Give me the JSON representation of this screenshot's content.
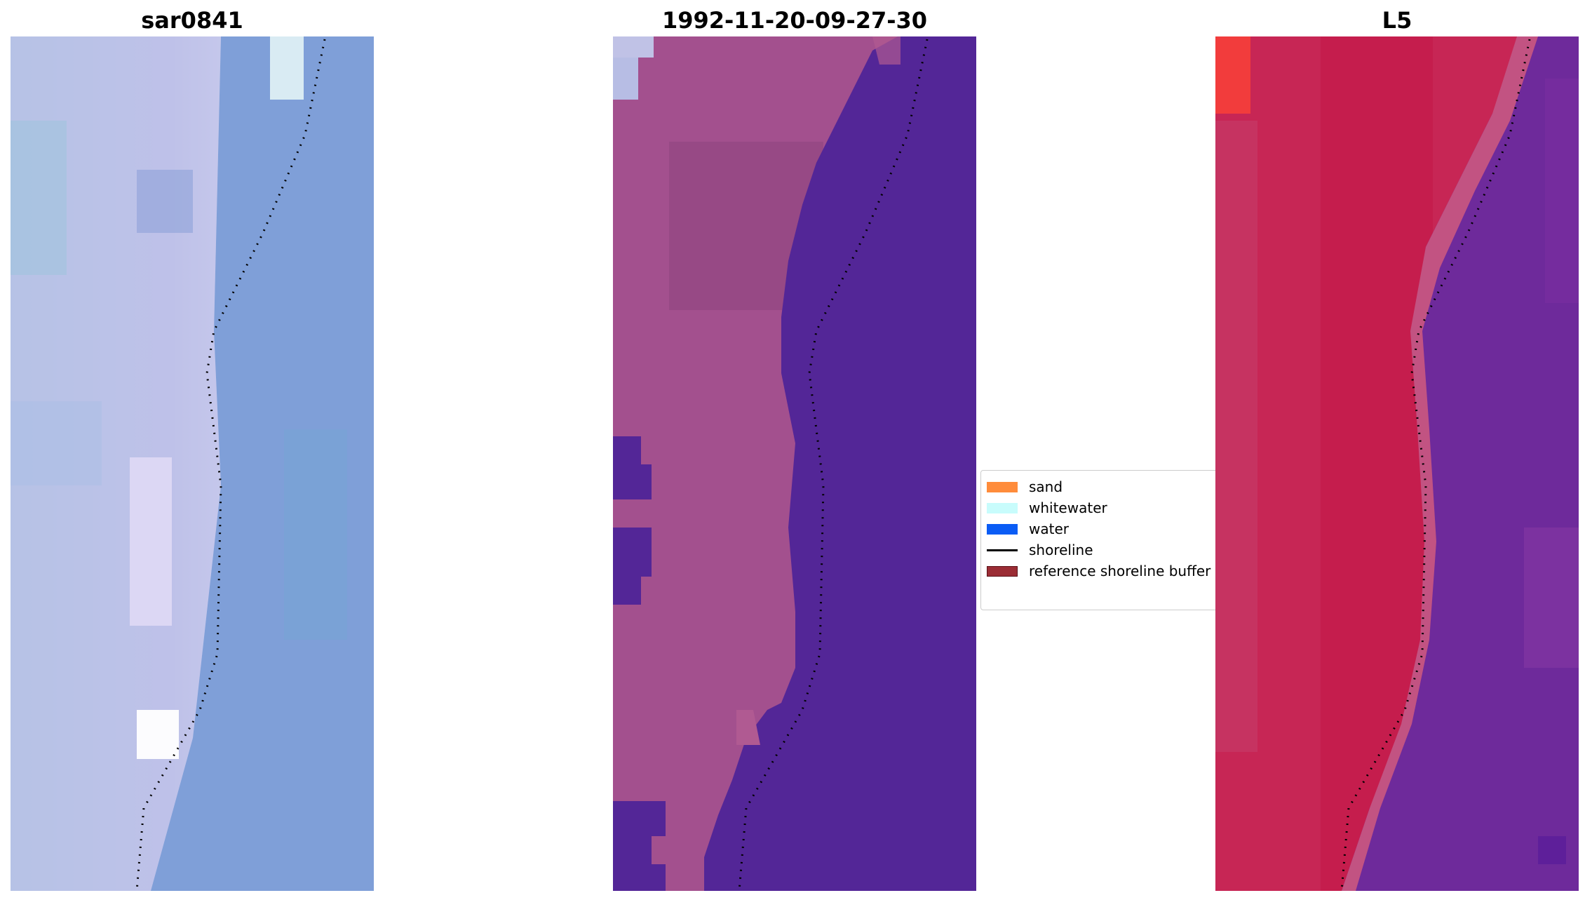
{
  "panels": [
    {
      "title": "sar0841"
    },
    {
      "title": "1992-11-20-09-27-30"
    },
    {
      "title": "L5"
    }
  ],
  "legend": {
    "items": [
      {
        "label": "sand",
        "color": "#ff8c3b"
      },
      {
        "label": "whitewater",
        "color": "#c8fcfc"
      },
      {
        "label": "water",
        "color": "#0a5cf5"
      },
      {
        "label": "shoreline",
        "color": "#000000"
      },
      {
        "label": "reference shoreline buffer",
        "color": "#9b2d35"
      }
    ]
  },
  "colors": {
    "rgb_land": "#b9bde6",
    "rgb_water": "#7f9fd8",
    "class_land": "#a3508e",
    "class_water": "#532697",
    "ndwi_land": "#c72655",
    "ndwi_water": "#6e2a9b"
  }
}
